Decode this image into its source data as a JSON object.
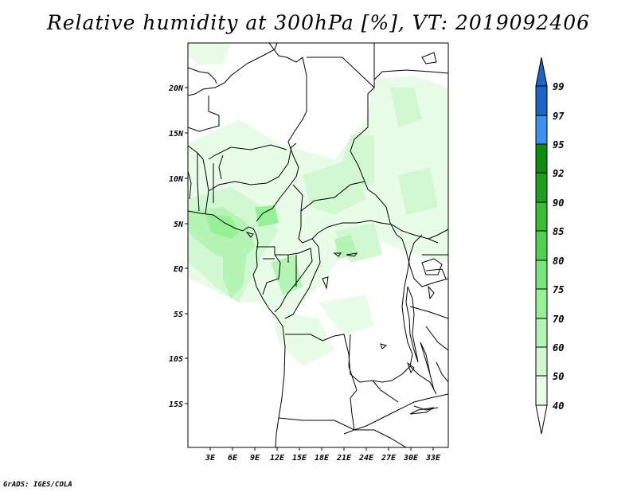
{
  "title": "Relative humidity at 300hPa [%], VT: 2019092406",
  "credit": "GrADS: IGES/COLA",
  "map": {
    "lat_labels": [
      "20N",
      "15N",
      "10N",
      "5N",
      "EQ",
      "5S",
      "10S",
      "15S"
    ],
    "lon_labels": [
      "3E",
      "6E",
      "9E",
      "12E",
      "15E",
      "18E",
      "21E",
      "24E",
      "27E",
      "30E",
      "33E"
    ]
  },
  "colorbar": {
    "labels": [
      "99",
      "97",
      "95",
      "92",
      "90",
      "85",
      "80",
      "75",
      "70",
      "60",
      "50",
      "40"
    ],
    "colors": {
      "top_arrow": "#1c64c8",
      "97_99": "#1c64c8",
      "95_97": "#3d8ff0",
      "92_95": "#0c8c0c",
      "90_92": "#1ea01e",
      "85_90": "#37be37",
      "80_85": "#50d250",
      "75_80": "#78e678",
      "70_75": "#96f096",
      "60_70": "#b4f4b4",
      "50_60": "#d2f8d2",
      "40_50": "#e8fce8",
      "bottom_arrow": "#ffffff"
    }
  }
}
